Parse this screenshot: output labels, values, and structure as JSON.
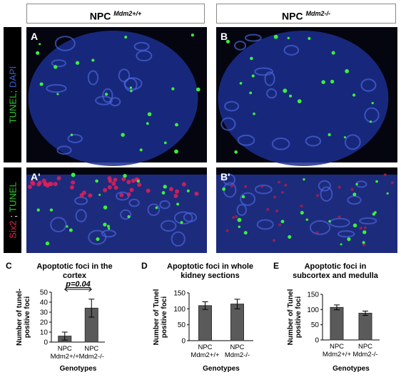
{
  "header": {
    "left": {
      "text": "NPC",
      "sup": "Mdm2+/+"
    },
    "right": {
      "text": "NPC",
      "sup": "Mdm2-/-"
    }
  },
  "side_labels": [
    [
      {
        "text": "TUNEL;",
        "color": "#2ecc2e"
      },
      {
        "text": "DAPI",
        "color": "#3a5fd0"
      }
    ],
    [
      {
        "text": "Six2",
        "color": "#e8204a"
      },
      {
        "text": ";",
        "color": "#ffffff"
      },
      {
        "text": "TUNEL",
        "color": "#2ecc2e"
      }
    ]
  ],
  "panels": [
    "A",
    "B",
    "A'",
    "B'"
  ],
  "chart_data": [
    {
      "type": "bar",
      "letter": "C",
      "title": "Apoptotic foci in the cortex",
      "ylabel": "Number of tunel-positive foci",
      "xlabel": "Genotypes",
      "categories": [
        "NPC Mdm2+/+",
        "NPC Mdm2-/-"
      ],
      "values": [
        6,
        34
      ],
      "errors": [
        4,
        9
      ],
      "color": "#5a5a5a",
      "ylim": [
        0,
        50
      ],
      "yticks": [
        0,
        10,
        20,
        30,
        40,
        50
      ],
      "annotation": "p=0.04"
    },
    {
      "type": "bar",
      "letter": "D",
      "title": "Apoptotic foci in whole kidney sections",
      "ylabel": "Number of Tunel positive foci",
      "xlabel": "Genotypes",
      "categories": [
        "NPC Mdm2+/+",
        "NPC Mdm2-/-"
      ],
      "values": [
        110,
        115
      ],
      "errors": [
        12,
        15
      ],
      "color": "#5a5a5a",
      "ylim": [
        0,
        150
      ],
      "yticks": [
        0,
        50,
        100,
        150
      ]
    },
    {
      "type": "bar",
      "letter": "E",
      "title": "Apoptotic foci in subcortex and medulla",
      "ylabel": "Number of Tunel positive foci",
      "xlabel": "Genotypes",
      "categories": [
        "NPC Mdm2+/+",
        "NPC Mdm2-/-"
      ],
      "values": [
        107,
        88
      ],
      "errors": [
        8,
        7
      ],
      "color": "#5a5a5a",
      "ylim": [
        0,
        150
      ],
      "yticks": [
        0,
        50,
        100,
        150
      ]
    }
  ]
}
